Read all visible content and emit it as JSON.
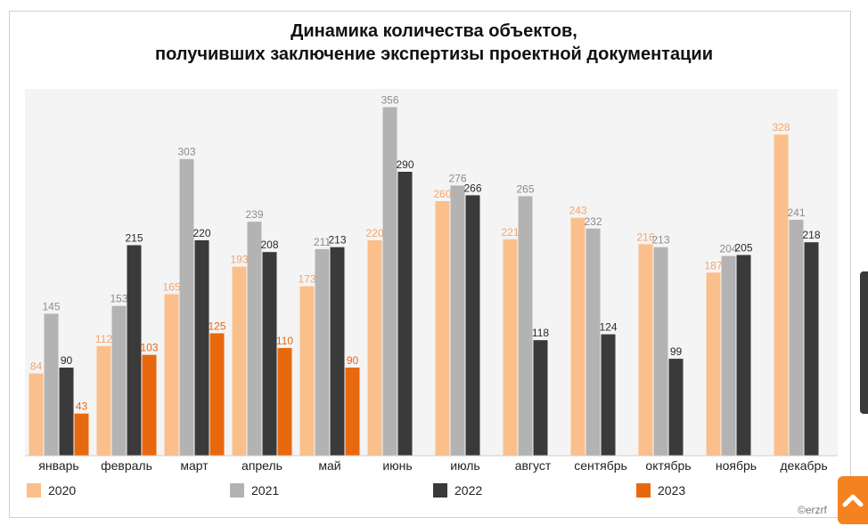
{
  "chart_data": {
    "type": "bar",
    "title_lines": [
      "Динамика количества объектов,",
      "получивших заключение экспертизы проектной документации"
    ],
    "categories": [
      "январь",
      "февраль",
      "март",
      "апрель",
      "май",
      "июнь",
      "июль",
      "август",
      "сентябрь",
      "октябрь",
      "ноябрь",
      "декабрь"
    ],
    "series": [
      {
        "name": "2020",
        "color": "#fbbf8c",
        "label_color": "#f5a46a",
        "values": [
          84,
          112,
          165,
          193,
          173,
          220,
          260,
          221,
          243,
          216,
          187,
          328
        ]
      },
      {
        "name": "2021",
        "color": "#b3b3b3",
        "label_color": "#8c8c8c",
        "values": [
          145,
          153,
          303,
          239,
          211,
          356,
          276,
          265,
          232,
          213,
          204,
          241
        ]
      },
      {
        "name": "2022",
        "color": "#3a3a3a",
        "label_color": "#2a2a2a",
        "values": [
          90,
          215,
          220,
          208,
          213,
          290,
          266,
          118,
          124,
          99,
          205,
          218
        ]
      },
      {
        "name": "2023",
        "color": "#e8690d",
        "label_color": "#e8690d",
        "values": [
          43,
          103,
          125,
          110,
          90,
          null,
          null,
          null,
          null,
          null,
          null,
          null
        ]
      }
    ],
    "ylim": [
      0,
      370
    ],
    "xlabel": "",
    "ylabel": "",
    "legend_position": "bottom",
    "grid": false
  },
  "copyright": "©erzrf"
}
